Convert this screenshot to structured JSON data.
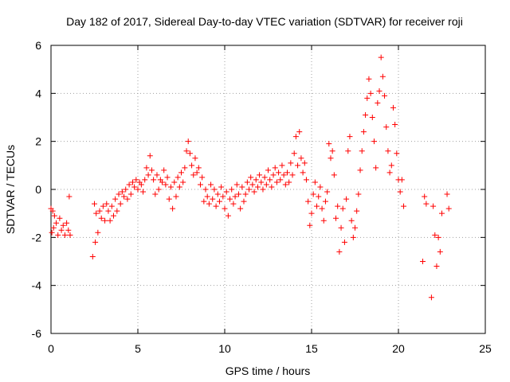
{
  "chart_data": {
    "type": "scatter",
    "title": "Day 182 of 2017, Sidereal Day-to-day VTEC variation (SDTVAR) for receiver roji",
    "xlabel": "GPS time / hours",
    "ylabel": "SDTVAR / TECUs",
    "xlim": [
      0,
      25
    ],
    "ylim": [
      -6,
      6
    ],
    "xticks": [
      0,
      5,
      10,
      15,
      20,
      25
    ],
    "yticks": [
      -6,
      -4,
      -2,
      0,
      2,
      4,
      6
    ],
    "xtick_labels": [
      "0",
      "5",
      "10",
      "15",
      "20",
      "25"
    ],
    "ytick_labels": [
      "-6",
      "-4",
      "-2",
      "0",
      "2",
      "4",
      "6"
    ],
    "grid": true,
    "marker": "+",
    "series": [
      {
        "name": "SDTVAR",
        "color": "#ff0000",
        "x": [
          0.0,
          0.05,
          0.1,
          0.15,
          0.2,
          0.3,
          0.4,
          0.5,
          0.6,
          0.7,
          0.8,
          0.9,
          1.0,
          1.05,
          1.1,
          2.4,
          2.5,
          2.55,
          2.6,
          2.7,
          2.8,
          2.9,
          3.0,
          3.1,
          3.2,
          3.3,
          3.4,
          3.5,
          3.6,
          3.7,
          3.8,
          3.9,
          4.0,
          4.1,
          4.2,
          4.3,
          4.4,
          4.5,
          4.6,
          4.7,
          4.8,
          4.9,
          5.0,
          5.1,
          5.2,
          5.3,
          5.4,
          5.5,
          5.6,
          5.7,
          5.8,
          5.9,
          6.0,
          6.1,
          6.2,
          6.3,
          6.4,
          6.5,
          6.6,
          6.7,
          6.8,
          6.9,
          7.0,
          7.1,
          7.2,
          7.3,
          7.4,
          7.5,
          7.6,
          7.7,
          7.8,
          7.9,
          8.0,
          8.1,
          8.2,
          8.3,
          8.4,
          8.5,
          8.6,
          8.7,
          8.8,
          8.9,
          9.0,
          9.1,
          9.2,
          9.3,
          9.4,
          9.5,
          9.6,
          9.7,
          9.8,
          9.9,
          10.0,
          10.1,
          10.2,
          10.3,
          10.4,
          10.5,
          10.6,
          10.7,
          10.8,
          10.9,
          11.0,
          11.1,
          11.2,
          11.3,
          11.4,
          11.5,
          11.6,
          11.7,
          11.8,
          11.9,
          12.0,
          12.1,
          12.2,
          12.3,
          12.4,
          12.5,
          12.6,
          12.7,
          12.8,
          12.9,
          13.0,
          13.1,
          13.2,
          13.3,
          13.4,
          13.5,
          13.6,
          13.7,
          13.8,
          13.9,
          14.0,
          14.1,
          14.2,
          14.3,
          14.4,
          14.5,
          14.6,
          14.7,
          14.8,
          14.9,
          15.0,
          15.1,
          15.2,
          15.3,
          15.4,
          15.5,
          15.6,
          15.7,
          15.8,
          15.9,
          16.0,
          16.1,
          16.2,
          16.3,
          16.4,
          16.5,
          16.6,
          16.7,
          16.8,
          16.9,
          17.0,
          17.1,
          17.2,
          17.3,
          17.4,
          17.5,
          17.6,
          17.7,
          17.8,
          17.9,
          18.0,
          18.1,
          18.2,
          18.3,
          18.4,
          18.5,
          18.6,
          18.7,
          18.8,
          18.9,
          19.0,
          19.1,
          19.2,
          19.3,
          19.4,
          19.5,
          19.6,
          19.7,
          19.8,
          19.9,
          20.0,
          20.1,
          20.2,
          20.3,
          21.4,
          21.5,
          21.6,
          21.9,
          22.0,
          22.1,
          22.2,
          22.3,
          22.4,
          22.5,
          22.8,
          22.9
        ],
        "y": [
          -0.8,
          -1.8,
          -0.9,
          -1.6,
          -1.1,
          -1.4,
          -1.9,
          -1.2,
          -1.7,
          -1.5,
          -1.9,
          -1.4,
          -1.7,
          -0.3,
          -1.9,
          -2.8,
          -0.6,
          -2.2,
          -1.0,
          -1.8,
          -0.9,
          -1.2,
          -0.7,
          -1.3,
          -0.6,
          -0.9,
          -1.3,
          -0.7,
          -1.1,
          -0.4,
          -0.9,
          -0.2,
          -0.6,
          -0.1,
          -0.3,
          0.0,
          -0.4,
          0.2,
          -0.2,
          0.3,
          0.1,
          0.4,
          0.0,
          0.3,
          0.2,
          -0.1,
          0.4,
          0.9,
          0.6,
          1.4,
          0.8,
          0.4,
          -0.2,
          0.6,
          0.0,
          0.4,
          0.3,
          0.8,
          0.2,
          0.5,
          -0.4,
          0.1,
          -0.8,
          0.3,
          -0.3,
          0.5,
          0.1,
          0.7,
          0.3,
          0.9,
          1.6,
          2.0,
          1.5,
          1.0,
          0.6,
          1.3,
          0.7,
          0.9,
          0.2,
          0.5,
          -0.5,
          0.0,
          -0.3,
          -0.6,
          0.2,
          -0.4,
          0.0,
          -0.7,
          -0.2,
          -0.5,
          0.1,
          -0.3,
          -0.8,
          -0.1,
          -1.1,
          -0.4,
          0.0,
          -0.6,
          -0.3,
          0.2,
          -0.2,
          -0.8,
          0.1,
          -0.5,
          -0.2,
          0.3,
          0.0,
          0.5,
          0.2,
          -0.1,
          0.4,
          0.1,
          0.6,
          0.3,
          0.0,
          0.5,
          0.2,
          0.8,
          0.4,
          0.1,
          0.6,
          0.9,
          0.3,
          0.7,
          0.4,
          1.0,
          0.6,
          0.2,
          0.7,
          0.3,
          1.1,
          0.6,
          1.5,
          2.2,
          1.0,
          2.4,
          1.3,
          0.7,
          1.1,
          0.4,
          -0.5,
          -1.5,
          -1.0,
          -0.2,
          0.3,
          -0.7,
          -0.3,
          0.1,
          -0.8,
          -1.3,
          -0.5,
          -0.1,
          1.9,
          1.3,
          1.6,
          0.6,
          -1.2,
          -0.7,
          -2.6,
          -1.6,
          -0.8,
          -2.2,
          -0.4,
          1.6,
          2.2,
          -1.3,
          -2.0,
          -1.6,
          -0.9,
          -0.2,
          0.8,
          1.6,
          2.4,
          3.1,
          3.8,
          4.6,
          4.0,
          3.0,
          2.0,
          0.9,
          3.6,
          4.1,
          5.5,
          4.7,
          3.9,
          2.6,
          1.6,
          0.7,
          1.0,
          3.4,
          2.7,
          1.5,
          0.4,
          -0.1,
          0.4,
          -0.7,
          -3.0,
          -0.3,
          -0.6,
          -4.5,
          -0.7,
          -1.9,
          -3.2,
          -2.0,
          -2.6,
          -1.0,
          -0.2,
          -0.8
        ]
      }
    ]
  }
}
